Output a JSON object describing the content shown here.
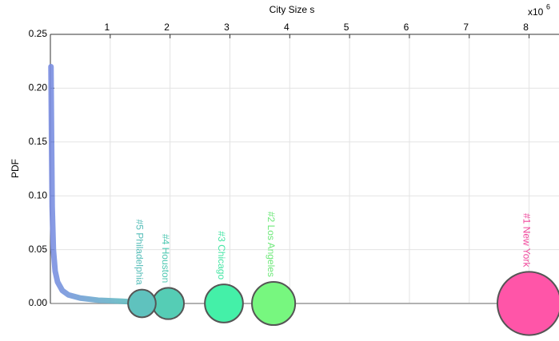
{
  "chart_data": {
    "type": "line",
    "xlabel": "City Size s",
    "ylabel": "PDF",
    "x_scale_label": {
      "base": "x10",
      "exponent": "6"
    },
    "xlim": [
      0,
      8.5
    ],
    "xticks": [
      1,
      2,
      3,
      4,
      5,
      6,
      7,
      8
    ],
    "ylim": [
      0,
      0.25
    ],
    "yticks": [
      {
        "value": 0,
        "label": "0.00"
      },
      {
        "value": 0.05,
        "label": "0.05"
      },
      {
        "value": 0.1,
        "label": "0.10"
      },
      {
        "value": 0.15,
        "label": "0.15"
      },
      {
        "value": 0.2,
        "label": "0.20"
      },
      {
        "value": 0.25,
        "label": "0.25"
      }
    ],
    "grid": true,
    "curve": {
      "x": [
        0.01,
        0.02,
        0.03,
        0.05,
        0.08,
        0.12,
        0.2,
        0.3,
        0.5,
        0.8,
        1.2,
        1.5
      ],
      "values": [
        0.22,
        0.15,
        0.09,
        0.05,
        0.03,
        0.02,
        0.012,
        0.008,
        0.005,
        0.003,
        0.002,
        0.001
      ]
    },
    "cities": {
      "labels": [
        "#1 New York",
        "#2 Los Angeles",
        "#3 Chicago",
        "#4 Houston",
        "#5 Philadelphia"
      ],
      "x": [
        8.0,
        3.73,
        2.9,
        1.97,
        1.53
      ],
      "values": [
        0,
        0,
        0,
        0,
        0
      ],
      "colors": [
        "#ff55a8",
        "#77f77f",
        "#44f0a8",
        "#55cdb5",
        "#5fc2be"
      ],
      "label_colors": [
        "#f0489c",
        "#6ee87a",
        "#45e6a4",
        "#4fc8b2",
        "#55bdb8"
      ]
    }
  }
}
